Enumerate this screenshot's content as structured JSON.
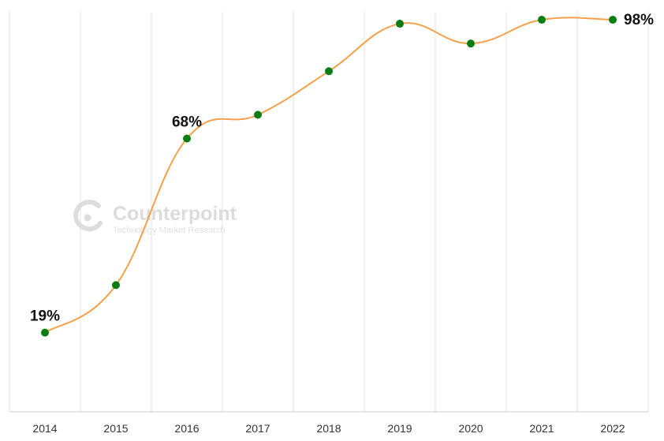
{
  "chart_data": {
    "type": "line",
    "categories": [
      "2014",
      "2015",
      "2016",
      "2017",
      "2018",
      "2019",
      "2020",
      "2021",
      "2022"
    ],
    "series": [
      {
        "values": [
          19,
          31,
          68,
          74,
          85,
          97,
          92,
          98,
          98
        ]
      }
    ],
    "data_labels": [
      {
        "index": 0,
        "text": "19%"
      },
      {
        "index": 2,
        "text": "68%"
      },
      {
        "index": 8,
        "text": "98%"
      }
    ],
    "ylim": [
      -1,
      100
    ],
    "y_axis_visible": false,
    "vertical_grid": true,
    "horizontal_grid": false,
    "colors": {
      "line": "#f5a04a",
      "marker": "#0a7d12",
      "grid": "#e3e3e3",
      "axis": "#cccccc",
      "label": "#111111"
    }
  },
  "watermark": {
    "name": "Counterpoint",
    "tagline": "Technology Market Research",
    "icon": "counterpoint-logo-icon"
  }
}
